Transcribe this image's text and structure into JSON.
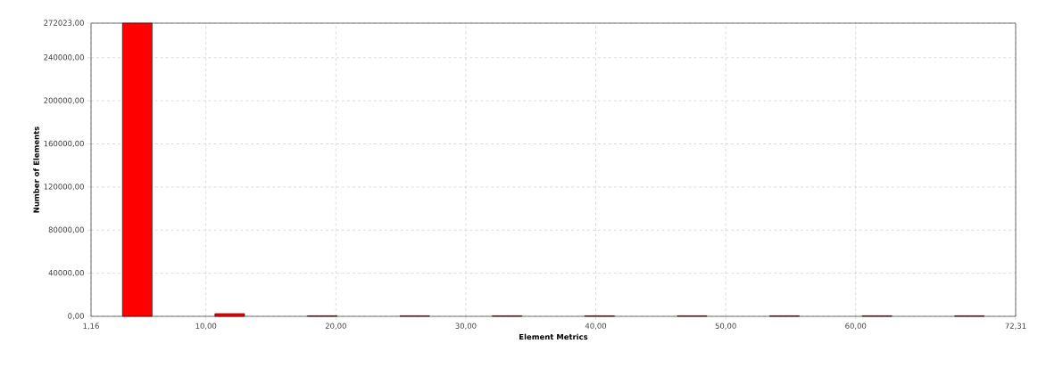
{
  "chart_data": {
    "type": "histogram",
    "xlabel": "Element Metrics",
    "ylabel": "Number of Elements",
    "bins": [
      1.16,
      8.275,
      15.39,
      22.505,
      29.62,
      36.735,
      43.85,
      50.965,
      58.08,
      65.195,
      72.31
    ],
    "values": [
      272023,
      2500,
      500,
      500,
      500,
      500,
      500,
      500,
      500,
      500
    ],
    "color": "#ff0000",
    "xlim": [
      1.16,
      72.31
    ],
    "xticks": [
      {
        "value": 1.16,
        "label": "1,16"
      },
      {
        "value": 10,
        "label": "10,00"
      },
      {
        "value": 20,
        "label": "20,00"
      },
      {
        "value": 30,
        "label": "30,00"
      },
      {
        "value": 40,
        "label": "40,00"
      },
      {
        "value": 50,
        "label": "50,00"
      },
      {
        "value": 60,
        "label": "60,00"
      },
      {
        "value": 72.31,
        "label": "72,31"
      }
    ],
    "ylim": [
      0,
      272023
    ],
    "yticks": [
      {
        "value": 0,
        "label": "0,00"
      },
      {
        "value": 40000,
        "label": "40000,00"
      },
      {
        "value": 80000,
        "label": "80000,00"
      },
      {
        "value": 120000,
        "label": "120000,00"
      },
      {
        "value": 160000,
        "label": "160000,00"
      },
      {
        "value": 200000,
        "label": "200000,00"
      },
      {
        "value": 240000,
        "label": "240000,00"
      },
      {
        "value": 272023,
        "label": "272023,00"
      }
    ],
    "grid": true
  }
}
